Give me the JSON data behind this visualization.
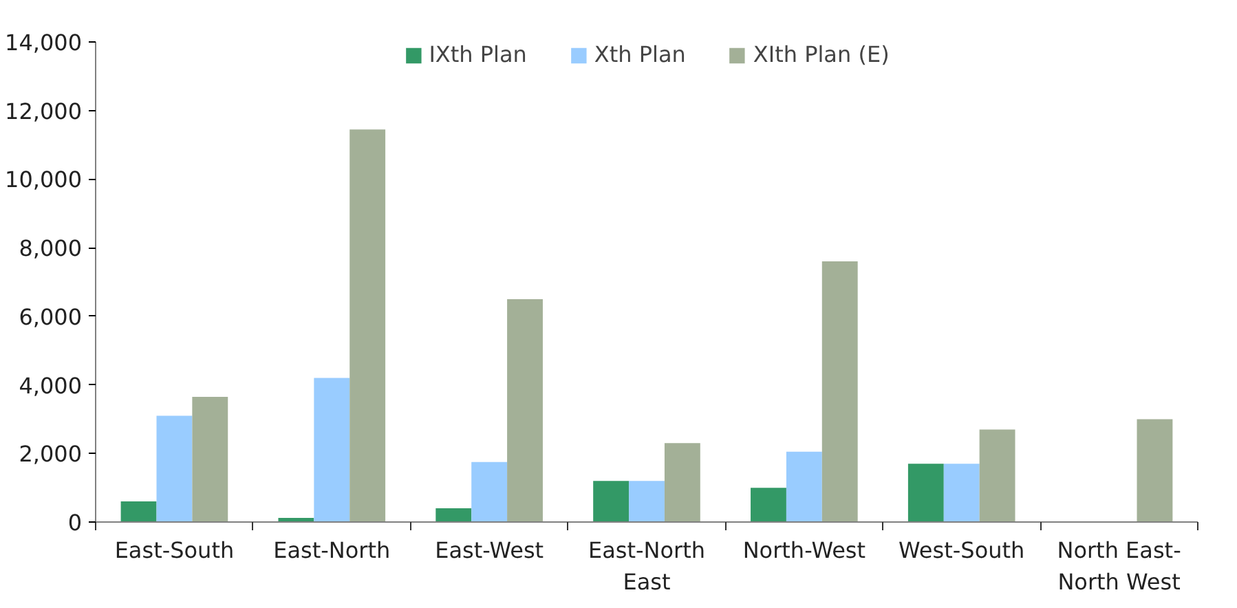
{
  "chart_data": {
    "type": "bar",
    "categories": [
      "East-South",
      "East-North",
      "East-West",
      "East-North East",
      "North-West",
      "West-South",
      "North East-North West"
    ],
    "series": [
      {
        "name": "IXth Plan",
        "color": "#339966",
        "values": [
          600,
          120,
          400,
          1200,
          1000,
          1700,
          0
        ]
      },
      {
        "name": "Xth Plan",
        "color": "#99ccff",
        "values": [
          3100,
          4200,
          1750,
          1200,
          2050,
          1700,
          0
        ]
      },
      {
        "name": "XIth Plan (E)",
        "color": "#a3b097",
        "values": [
          3650,
          11450,
          6500,
          2300,
          7600,
          2700,
          3000
        ]
      }
    ],
    "ylim": [
      0,
      14000
    ],
    "yticks": [
      0,
      {
        "value": 2000,
        "label": "2,000"
      },
      {
        "value": 4000,
        "label": "4,000"
      },
      {
        "value": 6000,
        "label": "6,000"
      },
      {
        "value": 8000,
        "label": "8,000"
      },
      {
        "value": 10000,
        "label": "10,000"
      },
      {
        "value": 12000,
        "label": "12,000"
      },
      {
        "value": 14000,
        "label": "14,000"
      }
    ],
    "grid": false,
    "legend": "top"
  }
}
